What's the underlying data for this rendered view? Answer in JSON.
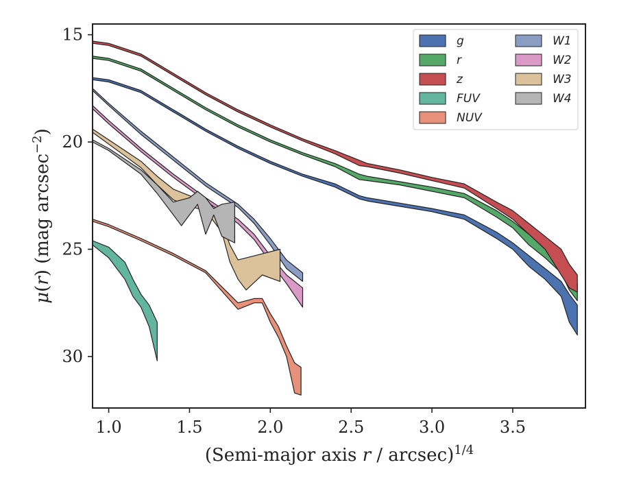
{
  "chart_data": {
    "type": "area",
    "xlabel": "(Semi-major axis r / arcsec)^1/4",
    "ylabel": "μ(r) (mag arcsec^−2)",
    "xlim": [
      0.9,
      3.95
    ],
    "ylim": [
      32.4,
      14.5
    ],
    "y_inverted": true,
    "xticks": [
      "1.0",
      "1.5",
      "2.0",
      "2.5",
      "3.0",
      "3.5"
    ],
    "yticks": [
      "15",
      "20",
      "25",
      "30"
    ],
    "legend_placement": "top-right",
    "grid": false,
    "series": [
      {
        "name": "g",
        "color": "#4c72b0",
        "upper": [
          [
            0.9,
            17.0
          ],
          [
            1.0,
            17.1
          ],
          [
            1.2,
            17.6
          ],
          [
            1.4,
            18.5
          ],
          [
            1.6,
            19.4
          ],
          [
            1.8,
            20.2
          ],
          [
            2.0,
            20.9
          ],
          [
            2.2,
            21.5
          ],
          [
            2.4,
            21.95
          ],
          [
            2.55,
            22.5
          ],
          [
            2.6,
            22.6
          ],
          [
            2.8,
            22.85
          ],
          [
            3.0,
            23.1
          ],
          [
            3.2,
            23.4
          ],
          [
            3.4,
            24.2
          ],
          [
            3.5,
            24.7
          ],
          [
            3.6,
            25.3
          ],
          [
            3.7,
            25.9
          ],
          [
            3.8,
            26.5
          ],
          [
            3.85,
            27.1
          ],
          [
            3.9,
            27.6
          ]
        ],
        "lower": [
          [
            0.9,
            17.1
          ],
          [
            1.0,
            17.2
          ],
          [
            1.2,
            17.7
          ],
          [
            1.4,
            18.6
          ],
          [
            1.6,
            19.5
          ],
          [
            1.8,
            20.3
          ],
          [
            2.0,
            21.0
          ],
          [
            2.2,
            21.6
          ],
          [
            2.4,
            22.1
          ],
          [
            2.55,
            22.65
          ],
          [
            2.6,
            22.75
          ],
          [
            2.8,
            23.0
          ],
          [
            3.0,
            23.25
          ],
          [
            3.2,
            23.6
          ],
          [
            3.4,
            24.5
          ],
          [
            3.5,
            25.0
          ],
          [
            3.6,
            25.8
          ],
          [
            3.7,
            26.4
          ],
          [
            3.8,
            27.2
          ],
          [
            3.85,
            28.4
          ],
          [
            3.9,
            29.0
          ]
        ]
      },
      {
        "name": "r",
        "color": "#55a868",
        "upper": [
          [
            0.9,
            16.0
          ],
          [
            1.0,
            16.1
          ],
          [
            1.2,
            16.6
          ],
          [
            1.4,
            17.5
          ],
          [
            1.6,
            18.4
          ],
          [
            1.8,
            19.2
          ],
          [
            2.0,
            19.9
          ],
          [
            2.2,
            20.5
          ],
          [
            2.4,
            21.0
          ],
          [
            2.55,
            21.5
          ],
          [
            2.6,
            21.6
          ],
          [
            2.8,
            21.85
          ],
          [
            3.0,
            22.1
          ],
          [
            3.2,
            22.4
          ],
          [
            3.4,
            23.2
          ],
          [
            3.5,
            23.7
          ],
          [
            3.6,
            24.3
          ],
          [
            3.7,
            24.8
          ],
          [
            3.8,
            25.4
          ],
          [
            3.85,
            26.1
          ],
          [
            3.9,
            26.6
          ]
        ],
        "lower": [
          [
            0.9,
            16.1
          ],
          [
            1.0,
            16.2
          ],
          [
            1.2,
            16.7
          ],
          [
            1.4,
            17.6
          ],
          [
            1.6,
            18.5
          ],
          [
            1.8,
            19.3
          ],
          [
            2.0,
            20.0
          ],
          [
            2.2,
            20.6
          ],
          [
            2.4,
            21.15
          ],
          [
            2.55,
            21.75
          ],
          [
            2.6,
            21.8
          ],
          [
            2.8,
            22.0
          ],
          [
            3.0,
            22.3
          ],
          [
            3.2,
            22.6
          ],
          [
            3.4,
            23.5
          ],
          [
            3.5,
            24.0
          ],
          [
            3.6,
            24.8
          ],
          [
            3.7,
            25.4
          ],
          [
            3.8,
            26.1
          ],
          [
            3.85,
            26.9
          ],
          [
            3.9,
            27.4
          ]
        ]
      },
      {
        "name": "z",
        "color": "#c44e52",
        "upper": [
          [
            0.9,
            15.3
          ],
          [
            1.0,
            15.4
          ],
          [
            1.2,
            15.9
          ],
          [
            1.4,
            16.8
          ],
          [
            1.6,
            17.7
          ],
          [
            1.8,
            18.5
          ],
          [
            2.0,
            19.2
          ],
          [
            2.2,
            19.85
          ],
          [
            2.4,
            20.4
          ],
          [
            2.55,
            20.85
          ],
          [
            2.6,
            21.0
          ],
          [
            2.8,
            21.3
          ],
          [
            3.0,
            21.65
          ],
          [
            3.2,
            21.95
          ],
          [
            3.4,
            22.8
          ],
          [
            3.5,
            23.2
          ],
          [
            3.6,
            23.8
          ],
          [
            3.7,
            24.4
          ],
          [
            3.8,
            25.0
          ],
          [
            3.85,
            25.7
          ],
          [
            3.9,
            26.2
          ]
        ],
        "lower": [
          [
            0.9,
            15.4
          ],
          [
            1.0,
            15.5
          ],
          [
            1.2,
            16.0
          ],
          [
            1.4,
            16.9
          ],
          [
            1.6,
            17.8
          ],
          [
            1.8,
            18.6
          ],
          [
            2.0,
            19.3
          ],
          [
            2.2,
            19.95
          ],
          [
            2.4,
            20.55
          ],
          [
            2.55,
            21.1
          ],
          [
            2.6,
            21.15
          ],
          [
            2.8,
            21.45
          ],
          [
            3.0,
            21.8
          ],
          [
            3.2,
            22.15
          ],
          [
            3.4,
            23.1
          ],
          [
            3.5,
            23.6
          ],
          [
            3.6,
            24.3
          ],
          [
            3.7,
            25.0
          ],
          [
            3.8,
            26.2
          ],
          [
            3.85,
            26.8
          ],
          [
            3.9,
            27.0
          ]
        ]
      },
      {
        "name": "FUV",
        "color": "#64b5a0",
        "upper": [
          [
            0.9,
            24.6
          ],
          [
            1.0,
            24.9
          ],
          [
            1.1,
            25.6
          ],
          [
            1.15,
            26.4
          ],
          [
            1.2,
            27.1
          ],
          [
            1.25,
            27.6
          ],
          [
            1.3,
            28.4
          ]
        ],
        "lower": [
          [
            0.9,
            24.8
          ],
          [
            1.0,
            25.4
          ],
          [
            1.1,
            26.4
          ],
          [
            1.15,
            27.2
          ],
          [
            1.2,
            27.7
          ],
          [
            1.25,
            28.6
          ],
          [
            1.3,
            30.2
          ]
        ]
      },
      {
        "name": "NUV",
        "color": "#e8917a",
        "upper": [
          [
            0.9,
            23.6
          ],
          [
            1.0,
            23.85
          ],
          [
            1.2,
            24.5
          ],
          [
            1.4,
            25.2
          ],
          [
            1.6,
            26.0
          ],
          [
            1.8,
            27.5
          ],
          [
            1.9,
            27.3
          ],
          [
            1.95,
            27.3
          ],
          [
            2.0,
            28.0
          ],
          [
            2.05,
            28.6
          ],
          [
            2.1,
            29.5
          ],
          [
            2.15,
            30.3
          ],
          [
            2.19,
            30.5
          ]
        ],
        "lower": [
          [
            0.9,
            23.7
          ],
          [
            1.0,
            23.95
          ],
          [
            1.2,
            24.6
          ],
          [
            1.4,
            25.3
          ],
          [
            1.6,
            26.1
          ],
          [
            1.8,
            27.8
          ],
          [
            1.9,
            27.5
          ],
          [
            1.95,
            27.5
          ],
          [
            2.0,
            28.4
          ],
          [
            2.05,
            29.1
          ],
          [
            2.1,
            30.0
          ],
          [
            2.15,
            31.7
          ],
          [
            2.19,
            31.8
          ]
        ]
      },
      {
        "name": "W1",
        "color": "#8b9dc3",
        "upper": [
          [
            0.9,
            17.5
          ],
          [
            1.0,
            18.2
          ],
          [
            1.2,
            19.5
          ],
          [
            1.4,
            20.7
          ],
          [
            1.6,
            21.9
          ],
          [
            1.8,
            22.9
          ],
          [
            1.9,
            23.6
          ],
          [
            2.0,
            24.5
          ],
          [
            2.1,
            25.5
          ],
          [
            2.2,
            26.1
          ]
        ],
        "lower": [
          [
            0.9,
            17.6
          ],
          [
            1.0,
            18.3
          ],
          [
            1.2,
            19.65
          ],
          [
            1.4,
            20.85
          ],
          [
            1.6,
            22.05
          ],
          [
            1.8,
            23.05
          ],
          [
            1.9,
            23.8
          ],
          [
            2.0,
            24.8
          ],
          [
            2.1,
            25.9
          ],
          [
            2.2,
            26.5
          ]
        ]
      },
      {
        "name": "W2",
        "color": "#d99ac8",
        "upper": [
          [
            0.9,
            18.3
          ],
          [
            1.0,
            19.0
          ],
          [
            1.2,
            20.3
          ],
          [
            1.4,
            21.5
          ],
          [
            1.6,
            22.6
          ],
          [
            1.8,
            23.6
          ],
          [
            1.9,
            24.3
          ],
          [
            2.0,
            25.3
          ],
          [
            2.1,
            26.2
          ],
          [
            2.2,
            26.8
          ]
        ],
        "lower": [
          [
            0.9,
            18.45
          ],
          [
            1.0,
            19.15
          ],
          [
            1.2,
            20.45
          ],
          [
            1.4,
            21.65
          ],
          [
            1.6,
            22.75
          ],
          [
            1.8,
            23.8
          ],
          [
            1.9,
            24.55
          ],
          [
            2.0,
            25.6
          ],
          [
            2.1,
            26.6
          ],
          [
            2.2,
            27.7
          ]
        ]
      },
      {
        "name": "W3",
        "color": "#dcc29a",
        "upper": [
          [
            0.9,
            19.4
          ],
          [
            1.0,
            19.9
          ],
          [
            1.2,
            20.9
          ],
          [
            1.3,
            21.6
          ],
          [
            1.4,
            22.2
          ],
          [
            1.5,
            22.5
          ],
          [
            1.6,
            22.8
          ],
          [
            1.7,
            23.8
          ],
          [
            1.75,
            24.8
          ],
          [
            1.8,
            25.5
          ],
          [
            2.06,
            25.0
          ]
        ],
        "lower": [
          [
            0.9,
            19.55
          ],
          [
            1.0,
            20.1
          ],
          [
            1.2,
            21.2
          ],
          [
            1.3,
            22.0
          ],
          [
            1.4,
            22.7
          ],
          [
            1.5,
            23.0
          ],
          [
            1.6,
            23.2
          ],
          [
            1.7,
            24.2
          ],
          [
            1.75,
            25.6
          ],
          [
            1.8,
            26.4
          ],
          [
            1.85,
            26.9
          ],
          [
            1.95,
            26.2
          ],
          [
            2.06,
            26.5
          ]
        ]
      },
      {
        "name": "W4",
        "color": "#b5b5b5",
        "upper": [
          [
            0.9,
            19.9
          ],
          [
            1.0,
            20.3
          ],
          [
            1.2,
            21.3
          ],
          [
            1.3,
            22.0
          ],
          [
            1.4,
            22.8
          ],
          [
            1.5,
            22.6
          ],
          [
            1.55,
            22.3
          ],
          [
            1.6,
            22.6
          ],
          [
            1.65,
            23.1
          ],
          [
            1.7,
            22.9
          ],
          [
            1.78,
            22.8
          ]
        ],
        "lower": [
          [
            0.9,
            20.0
          ],
          [
            1.0,
            20.4
          ],
          [
            1.2,
            21.5
          ],
          [
            1.3,
            22.4
          ],
          [
            1.4,
            23.4
          ],
          [
            1.45,
            23.9
          ],
          [
            1.5,
            23.4
          ],
          [
            1.55,
            22.9
          ],
          [
            1.6,
            24.3
          ],
          [
            1.65,
            23.4
          ],
          [
            1.7,
            24.4
          ],
          [
            1.78,
            24.7
          ]
        ]
      }
    ]
  }
}
